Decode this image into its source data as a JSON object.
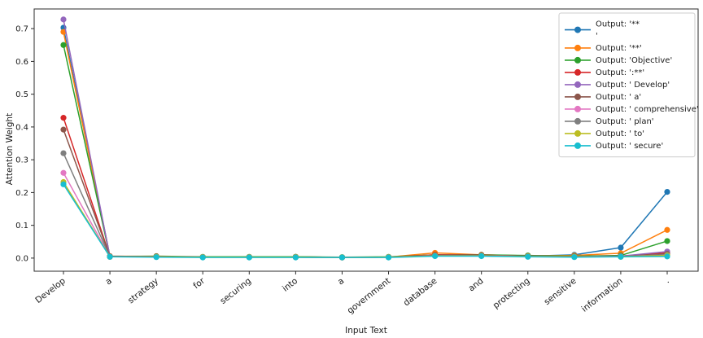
{
  "chart_data": {
    "type": "line",
    "title": "",
    "xlabel": "Input Text",
    "ylabel": "Attention Weight",
    "categories": [
      "Develop",
      "a",
      "strategy",
      "for",
      "securing",
      "into",
      "a",
      "government",
      "database",
      "and",
      "protecting",
      "sensitive",
      "information",
      "."
    ],
    "yticks": [
      0.0,
      0.1,
      0.2,
      0.3,
      0.4,
      0.5,
      0.6,
      0.7
    ],
    "ylim": [
      -0.04,
      0.76
    ],
    "grid": false,
    "legend_position": "upper right",
    "marker": "o",
    "x_tick_rotation": 45,
    "series": [
      {
        "name": "Output: '**\n'",
        "color": "#1f77b4",
        "values": [
          0.703,
          0.006,
          0.004,
          0.003,
          0.003,
          0.004,
          0.002,
          0.003,
          0.008,
          0.008,
          0.006,
          0.01,
          0.032,
          0.202
        ]
      },
      {
        "name": "Output: '**'",
        "color": "#ff7f0e",
        "values": [
          0.69,
          0.006,
          0.005,
          0.003,
          0.003,
          0.004,
          0.002,
          0.003,
          0.016,
          0.01,
          0.007,
          0.008,
          0.015,
          0.086
        ]
      },
      {
        "name": "Output: 'Objective'",
        "color": "#2ca02c",
        "values": [
          0.65,
          0.005,
          0.006,
          0.004,
          0.004,
          0.004,
          0.003,
          0.004,
          0.01,
          0.01,
          0.008,
          0.006,
          0.008,
          0.052
        ]
      },
      {
        "name": "Output: ':**'",
        "color": "#d62728",
        "values": [
          0.428,
          0.005,
          0.005,
          0.003,
          0.003,
          0.003,
          0.002,
          0.003,
          0.01,
          0.009,
          0.006,
          0.005,
          0.006,
          0.016
        ]
      },
      {
        "name": "Output: ' Develop'",
        "color": "#9467bd",
        "values": [
          0.728,
          0.004,
          0.004,
          0.003,
          0.003,
          0.003,
          0.002,
          0.003,
          0.008,
          0.008,
          0.006,
          0.005,
          0.006,
          0.02
        ]
      },
      {
        "name": "Output: ' a'",
        "color": "#8c564b",
        "values": [
          0.392,
          0.005,
          0.004,
          0.003,
          0.003,
          0.003,
          0.002,
          0.003,
          0.008,
          0.008,
          0.006,
          0.005,
          0.005,
          0.013
        ]
      },
      {
        "name": "Output: ' comprehensive'",
        "color": "#e377c2",
        "values": [
          0.26,
          0.004,
          0.004,
          0.003,
          0.003,
          0.003,
          0.002,
          0.003,
          0.007,
          0.007,
          0.005,
          0.004,
          0.005,
          0.01
        ]
      },
      {
        "name": "Output: ' plan'",
        "color": "#7f7f7f",
        "values": [
          0.32,
          0.004,
          0.004,
          0.003,
          0.003,
          0.003,
          0.002,
          0.003,
          0.007,
          0.007,
          0.005,
          0.004,
          0.005,
          0.01
        ]
      },
      {
        "name": "Output: ' to'",
        "color": "#bcbd22",
        "values": [
          0.232,
          0.004,
          0.004,
          0.003,
          0.003,
          0.003,
          0.002,
          0.003,
          0.007,
          0.007,
          0.005,
          0.004,
          0.004,
          0.008
        ]
      },
      {
        "name": "Output: ' secure'",
        "color": "#17becf",
        "values": [
          0.225,
          0.004,
          0.003,
          0.002,
          0.002,
          0.002,
          0.002,
          0.002,
          0.006,
          0.006,
          0.004,
          0.003,
          0.004,
          0.005
        ]
      }
    ],
    "style": {
      "text_color": "#1a1a1a",
      "frame_color": "#2b2b2b",
      "legend_border_color": "#cccccc",
      "background_color": "#ffffff"
    }
  }
}
